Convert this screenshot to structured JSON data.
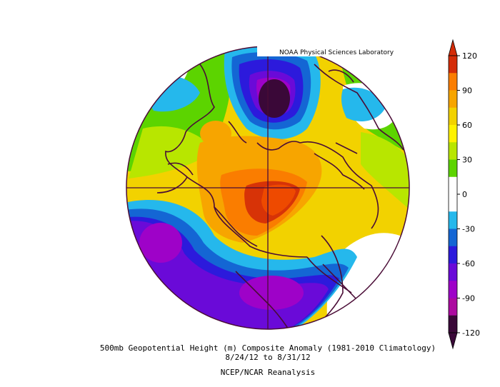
{
  "credit": "NOAA Physical Sciences Laboratory",
  "caption": {
    "line1": "500mb Geopotential Height (m) Composite Anomaly (1981-2010 Climatology)",
    "line2": "8/24/12  to 8/31/12",
    "line3": "NCEP/NCAR Reanalysis"
  },
  "colorbar": {
    "ticks": [
      "120",
      "90",
      "60",
      "30",
      "0",
      "-30",
      "-60",
      "-90",
      "-120"
    ],
    "colors": [
      "#d42c08",
      "#fa7d00",
      "#f7a500",
      "#f2d200",
      "#fff200",
      "#b8e600",
      "#5cd400",
      "#ffffff",
      "#ffffff",
      "#25b8ec",
      "#1466d4",
      "#2c1adc",
      "#6a0ad8",
      "#9e02c8",
      "#ac0aa0",
      "#3a0838"
    ]
  },
  "anomaly_features": [
    {
      "label": "ridge-central-arctic",
      "value": 120
    },
    {
      "label": "trough-north-pacific",
      "value": -90
    },
    {
      "label": "trough-north-america",
      "value": -90
    },
    {
      "label": "trough-eurasia",
      "value": -120
    }
  ]
}
